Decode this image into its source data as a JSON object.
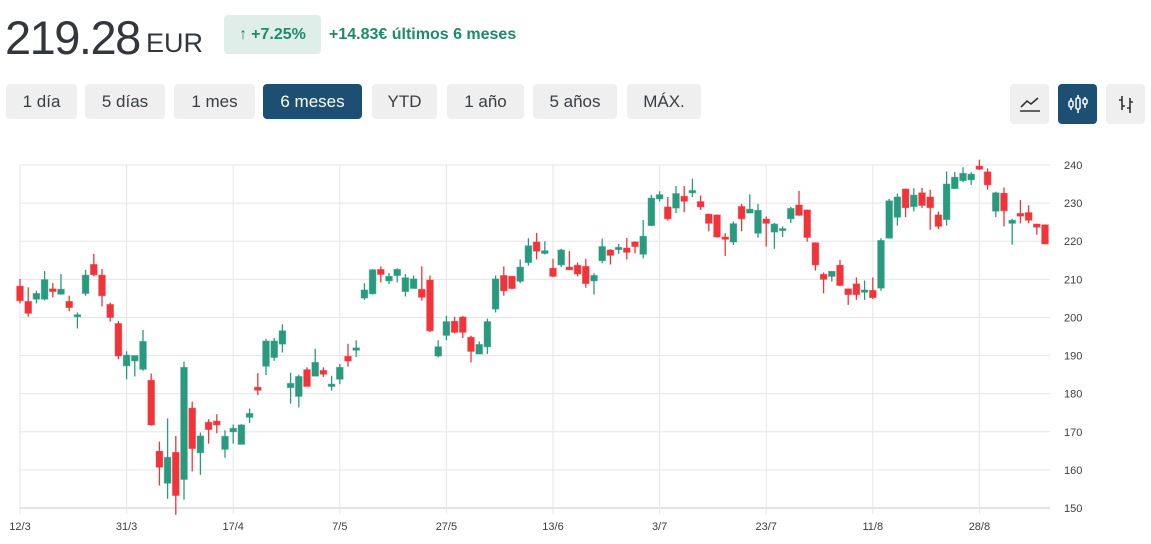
{
  "header": {
    "price": "219.28",
    "currency": "EUR",
    "change_pct": "+7.25%",
    "change_arrow_icon": "arrow-up-icon",
    "change_abs": "+14.83€ últimos 6 meses"
  },
  "ranges": [
    {
      "label": "1 día",
      "active": false
    },
    {
      "label": "5 días",
      "active": false
    },
    {
      "label": "1 mes",
      "active": false
    },
    {
      "label": "6 meses",
      "active": true
    },
    {
      "label": "YTD",
      "active": false
    },
    {
      "label": "1 año",
      "active": false
    },
    {
      "label": "5 años",
      "active": false
    },
    {
      "label": "MÁX.",
      "active": false
    }
  ],
  "chart_types": [
    {
      "icon": "line-chart-icon",
      "active": false
    },
    {
      "icon": "candlestick-icon",
      "active": true
    },
    {
      "icon": "ohlc-bars-icon",
      "active": false
    }
  ],
  "colors": {
    "up": "#2a9a7f",
    "down": "#f0343a",
    "accent": "#1d4f73",
    "positive_text": "#1f8a68"
  },
  "chart_data": {
    "type": "candlestick",
    "ylim": [
      150,
      240
    ],
    "y_ticks": [
      150,
      160,
      170,
      180,
      190,
      200,
      210,
      220,
      230,
      240
    ],
    "y_axis_side": "right",
    "grid": true,
    "x_ticks": [
      {
        "label": "12/3",
        "candle": 0
      },
      {
        "label": "31/3",
        "candle": 13
      },
      {
        "label": "17/4",
        "candle": 26
      },
      {
        "label": "7/5",
        "candle": 39
      },
      {
        "label": "27/5",
        "candle": 52
      },
      {
        "label": "13/6",
        "candle": 65
      },
      {
        "label": "3/7",
        "candle": 78
      },
      {
        "label": "23/7",
        "candle": 91
      },
      {
        "label": "11/8",
        "candle": 104
      },
      {
        "label": "28/8",
        "candle": 117
      }
    ],
    "ohlc_fields": [
      "open",
      "high",
      "low",
      "close"
    ],
    "candles": [
      [
        208.2,
        210.1,
        203.7,
        204.4
      ],
      [
        204.2,
        207.9,
        200.2,
        201.1
      ],
      [
        204.8,
        207.0,
        203.7,
        206.3
      ],
      [
        204.8,
        212.2,
        204.5,
        209.9
      ],
      [
        207.5,
        209.0,
        205.3,
        206.8
      ],
      [
        206.1,
        211.4,
        206.0,
        207.4
      ],
      [
        204.2,
        205.7,
        201.6,
        202.6
      ],
      [
        200.2,
        201.3,
        197.1,
        200.7
      ],
      [
        206.3,
        212.5,
        205.7,
        211.1
      ],
      [
        213.9,
        216.7,
        210.8,
        211.2
      ],
      [
        211.1,
        212.7,
        202.9,
        205.7
      ],
      [
        203.4,
        203.9,
        198.9,
        200.0
      ],
      [
        198.4,
        199.1,
        189.0,
        189.9
      ],
      [
        187.3,
        191.1,
        183.8,
        190.1
      ],
      [
        188.6,
        190.0,
        184.5,
        190.0
      ],
      [
        186.4,
        196.7,
        186.0,
        193.7
      ],
      [
        183.5,
        185.3,
        171.6,
        171.8
      ],
      [
        164.9,
        167.4,
        155.9,
        160.7
      ],
      [
        156.5,
        173.5,
        152.4,
        163.3
      ],
      [
        164.6,
        168.9,
        148.2,
        153.3
      ],
      [
        157.5,
        188.4,
        152.2,
        186.9
      ],
      [
        176.2,
        177.9,
        159.6,
        165.6
      ],
      [
        164.5,
        169.8,
        158.7,
        168.9
      ],
      [
        172.5,
        173.3,
        166.9,
        170.6
      ],
      [
        172.8,
        174.6,
        169.6,
        171.8
      ],
      [
        165.4,
        170.4,
        163.2,
        168.8
      ],
      [
        170.0,
        171.9,
        166.9,
        170.9
      ],
      [
        166.7,
        172.0,
        166.7,
        171.8
      ],
      [
        173.8,
        176.1,
        172.3,
        174.8
      ],
      [
        181.7,
        185.4,
        179.6,
        180.9
      ],
      [
        187.2,
        194.4,
        184.9,
        193.8
      ],
      [
        189.5,
        194.6,
        188.6,
        193.8
      ],
      [
        193.0,
        198.2,
        190.8,
        196.5
      ],
      [
        181.6,
        185.5,
        177.4,
        182.7
      ],
      [
        179.3,
        185.0,
        176.4,
        184.5
      ],
      [
        186.3,
        186.9,
        181.9,
        181.9
      ],
      [
        184.6,
        191.8,
        184.6,
        188.2
      ],
      [
        186.1,
        186.9,
        184.4,
        185.1
      ],
      [
        181.9,
        184.7,
        180.8,
        182.5
      ],
      [
        183.8,
        187.8,
        182.5,
        186.9
      ],
      [
        189.8,
        193.1,
        187.1,
        188.6
      ],
      [
        191.4,
        194.0,
        189.6,
        192.0
      ],
      [
        205.1,
        209.0,
        204.6,
        207.2
      ],
      [
        206.2,
        212.7,
        206.0,
        212.5
      ],
      [
        212.6,
        213.4,
        209.2,
        211.3
      ],
      [
        209.6,
        211.7,
        208.8,
        210.8
      ],
      [
        211.0,
        212.9,
        209.2,
        212.6
      ],
      [
        206.8,
        211.4,
        205.5,
        210.4
      ],
      [
        207.6,
        211.0,
        207.6,
        210.1
      ],
      [
        207.4,
        213.4,
        204.4,
        205.3
      ],
      [
        209.8,
        211.0,
        196.2,
        196.5
      ],
      [
        189.9,
        194.0,
        189.5,
        192.3
      ],
      [
        195.3,
        200.4,
        194.0,
        198.9
      ],
      [
        199.0,
        200.2,
        195.8,
        196.1
      ],
      [
        200.1,
        200.4,
        194.6,
        196.1
      ],
      [
        194.8,
        195.2,
        188.2,
        191.1
      ],
      [
        190.4,
        193.7,
        190.4,
        192.9
      ],
      [
        192.3,
        199.7,
        190.4,
        198.9
      ],
      [
        202.2,
        211.0,
        201.3,
        210.1
      ],
      [
        211.0,
        213.4,
        205.7,
        207.0
      ],
      [
        210.8,
        210.8,
        207.4,
        207.6
      ],
      [
        209.5,
        215.2,
        209.0,
        213.2
      ],
      [
        214.4,
        220.8,
        213.6,
        218.8
      ],
      [
        219.8,
        222.2,
        215.2,
        217.4
      ],
      [
        216.8,
        220.0,
        216.5,
        217.5
      ],
      [
        212.9,
        215.4,
        210.6,
        210.8
      ],
      [
        213.8,
        218.0,
        213.2,
        217.7
      ],
      [
        213.2,
        217.4,
        212.5,
        212.5
      ],
      [
        213.7,
        214.4,
        210.8,
        211.4
      ],
      [
        213.4,
        215.4,
        207.8,
        208.9
      ],
      [
        209.6,
        211.6,
        206.0,
        211.0
      ],
      [
        214.9,
        220.7,
        214.2,
        218.6
      ],
      [
        217.7,
        217.9,
        213.9,
        216.3
      ],
      [
        217.8,
        219.3,
        216.7,
        218.4
      ],
      [
        218.2,
        220.9,
        215.2,
        217.1
      ],
      [
        219.8,
        220.0,
        216.8,
        218.6
      ],
      [
        216.6,
        225.6,
        215.5,
        221.3
      ],
      [
        224.1,
        232.2,
        224.0,
        231.3
      ],
      [
        231.1,
        233.1,
        230.4,
        232.2
      ],
      [
        229.0,
        231.6,
        225.4,
        225.9
      ],
      [
        228.7,
        234.5,
        227.4,
        232.5
      ],
      [
        231.8,
        234.5,
        227.6,
        230.5
      ],
      [
        232.7,
        236.4,
        231.6,
        233.3
      ],
      [
        230.4,
        232.0,
        228.2,
        229.0
      ],
      [
        227.1,
        227.2,
        222.6,
        224.7
      ],
      [
        226.9,
        227.0,
        221.0,
        221.1
      ],
      [
        221.1,
        222.1,
        216.1,
        220.5
      ],
      [
        219.8,
        225.2,
        219.0,
        224.6
      ],
      [
        229.1,
        229.8,
        222.6,
        225.9
      ],
      [
        227.4,
        232.3,
        227.3,
        228.4
      ],
      [
        222.1,
        229.8,
        220.9,
        228.1
      ],
      [
        225.8,
        226.5,
        218.6,
        224.7
      ],
      [
        222.4,
        224.8,
        218.0,
        224.5
      ],
      [
        222.8,
        223.9,
        221.1,
        223.3
      ],
      [
        225.9,
        229.0,
        224.8,
        228.6
      ],
      [
        229.5,
        233.2,
        226.7,
        226.8
      ],
      [
        228.2,
        228.3,
        219.9,
        221.0
      ],
      [
        219.6,
        219.7,
        212.3,
        213.8
      ],
      [
        211.3,
        211.8,
        206.3,
        210.0
      ],
      [
        210.8,
        212.1,
        209.4,
        212.1
      ],
      [
        213.7,
        215.1,
        208.2,
        208.4
      ],
      [
        207.5,
        207.6,
        203.3,
        206.0
      ],
      [
        208.8,
        210.5,
        204.6,
        206.0
      ],
      [
        206.6,
        209.7,
        204.6,
        207.2
      ],
      [
        207.1,
        210.5,
        204.8,
        205.2
      ],
      [
        207.7,
        220.8,
        207.0,
        220.2
      ],
      [
        220.8,
        231.1,
        220.7,
        230.6
      ],
      [
        226.3,
        232.5,
        224.1,
        231.6
      ],
      [
        233.7,
        233.8,
        226.3,
        228.8
      ],
      [
        229.1,
        233.9,
        227.8,
        232.1
      ],
      [
        232.7,
        234.0,
        228.7,
        229.4
      ],
      [
        231.6,
        233.5,
        223.0,
        228.8
      ],
      [
        226.9,
        227.8,
        223.2,
        223.9
      ],
      [
        225.7,
        238.3,
        224.1,
        235.0
      ],
      [
        233.8,
        238.2,
        233.7,
        236.8
      ],
      [
        235.9,
        239.4,
        235.5,
        237.8
      ],
      [
        236.1,
        238.1,
        234.8,
        237.6
      ],
      [
        239.7,
        241.4,
        238.7,
        238.9
      ],
      [
        238.2,
        239.1,
        233.5,
        234.8
      ],
      [
        227.9,
        233.0,
        226.3,
        232.7
      ],
      [
        232.6,
        234.1,
        223.9,
        228.0
      ],
      [
        224.7,
        225.9,
        219.1,
        225.5
      ],
      [
        227.3,
        230.8,
        224.7,
        226.6
      ],
      [
        227.5,
        229.4,
        224.7,
        225.5
      ],
      [
        224.5,
        224.6,
        221.7,
        223.7
      ],
      [
        224.3,
        224.4,
        219.2,
        219.28
      ]
    ]
  }
}
